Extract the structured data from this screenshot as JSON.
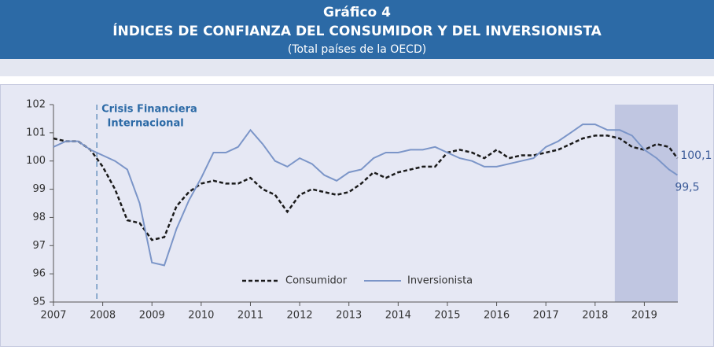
{
  "chart_data": {
    "type": "line",
    "title": "Gráfico 4",
    "subtitle": "ÍNDICES DE CONFIANZA DEL CONSUMIDOR Y DEL INVERSIONISTA",
    "caption": "(Total países de la OECD)",
    "x": [
      2007,
      2007.25,
      2007.5,
      2007.75,
      2008,
      2008.25,
      2008.5,
      2008.75,
      2009,
      2009.25,
      2009.5,
      2009.75,
      2010,
      2010.25,
      2010.5,
      2010.75,
      2011,
      2011.25,
      2011.5,
      2011.75,
      2012,
      2012.25,
      2012.5,
      2012.75,
      2013,
      2013.25,
      2013.5,
      2013.75,
      2014,
      2014.25,
      2014.5,
      2014.75,
      2015,
      2015.25,
      2015.5,
      2015.75,
      2016,
      2016.25,
      2016.5,
      2016.75,
      2017,
      2017.25,
      2017.5,
      2017.75,
      2018,
      2018.25,
      2018.5,
      2018.75,
      2019,
      2019.25,
      2019.5,
      2019.67
    ],
    "series": [
      {
        "name": "Consumidor",
        "color": "#1a1a1a",
        "dash": true,
        "values": [
          100.8,
          100.7,
          100.7,
          100.4,
          99.8,
          99.0,
          97.9,
          97.8,
          97.2,
          97.3,
          98.4,
          98.9,
          99.2,
          99.3,
          99.2,
          99.2,
          99.4,
          99.0,
          98.8,
          98.2,
          98.8,
          99.0,
          98.9,
          98.8,
          98.9,
          99.2,
          99.6,
          99.4,
          99.6,
          99.7,
          99.8,
          99.8,
          100.3,
          100.4,
          100.3,
          100.1,
          100.4,
          100.1,
          100.2,
          100.2,
          100.3,
          100.4,
          100.6,
          100.8,
          100.9,
          100.9,
          100.8,
          100.5,
          100.4,
          100.6,
          100.5,
          100.1
        ],
        "end_label": "100,1"
      },
      {
        "name": "Inversionista",
        "color": "#7b95c8",
        "dash": false,
        "values": [
          100.5,
          100.7,
          100.7,
          100.4,
          100.2,
          100.0,
          99.7,
          98.5,
          96.4,
          96.3,
          97.6,
          98.6,
          99.4,
          100.3,
          100.3,
          100.5,
          101.1,
          100.6,
          100.0,
          99.8,
          100.1,
          99.9,
          99.5,
          99.3,
          99.6,
          99.7,
          100.1,
          100.3,
          100.3,
          100.4,
          100.4,
          100.5,
          100.3,
          100.1,
          100.0,
          99.8,
          99.8,
          99.9,
          100.0,
          100.1,
          100.5,
          100.7,
          101.0,
          101.3,
          101.3,
          101.1,
          101.1,
          100.9,
          100.4,
          100.1,
          99.7,
          99.5
        ],
        "end_label": "99,5"
      }
    ],
    "xlim": [
      2007,
      2019.68
    ],
    "xticks": [
      2007,
      2008,
      2009,
      2010,
      2011,
      2012,
      2013,
      2014,
      2015,
      2016,
      2017,
      2018,
      2019
    ],
    "ylim": [
      95,
      102
    ],
    "yticks": [
      95,
      96,
      97,
      98,
      99,
      100,
      101,
      102
    ],
    "annotation": {
      "lines": [
        "Crisis Financiera",
        "Internacional"
      ],
      "x": 2007.88
    },
    "shaded_region": [
      2018.4,
      2019.68
    ],
    "legend": "bottom"
  }
}
